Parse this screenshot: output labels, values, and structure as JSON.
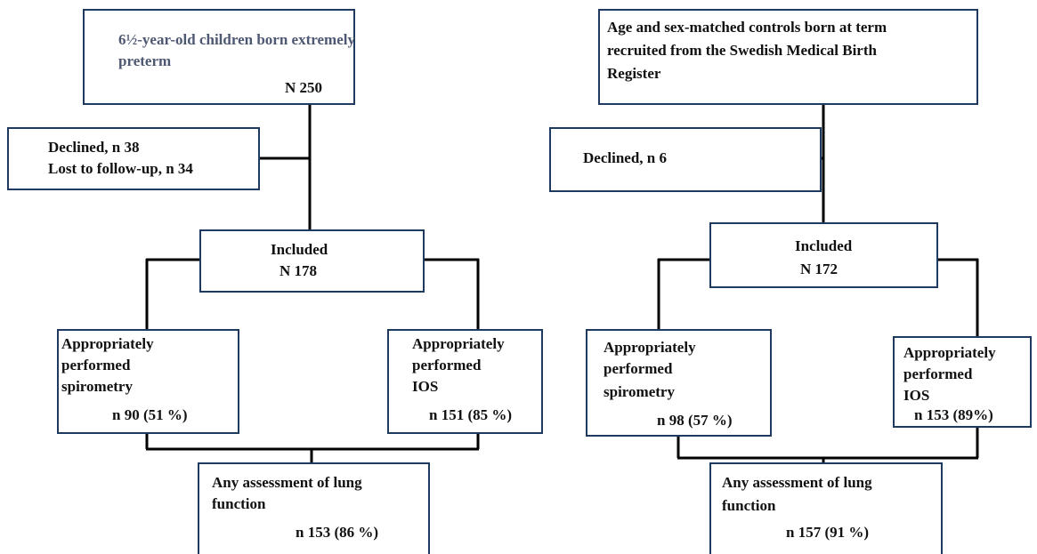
{
  "left": {
    "nodes": [
      {
        "lines": [
          "6½-year-old children born extremely",
          "preterm",
          "N 250"
        ]
      },
      {
        "lines": [
          "Declined, n 38",
          "Lost to follow-up, n 34"
        ]
      },
      {
        "lines": [
          "Included",
          "N 178"
        ]
      },
      {
        "lines": [
          "Appropriately",
          "performed",
          "spirometry",
          "n 90 (51 %)"
        ]
      },
      {
        "lines": [
          "Appropriately",
          "performed",
          "IOS",
          "n 151 (85 %)"
        ]
      },
      {
        "lines": [
          "Any assessment of lung",
          "function",
          "n 153 (86 %)"
        ]
      }
    ]
  },
  "right": {
    "nodes": [
      {
        "lines": [
          "Age and sex-matched controls born at term",
          "recruited from the Swedish Medical Birth",
          "Register"
        ]
      },
      {
        "lines": [
          "Declined, n 6"
        ]
      },
      {
        "lines": [
          "Included",
          "N 172"
        ]
      },
      {
        "lines": [
          "Appropriately",
          "performed",
          "spirometry",
          "n 98 (57 %)"
        ]
      },
      {
        "lines": [
          "Appropriately",
          "performed",
          "IOS",
          "n 153 (89%)"
        ]
      },
      {
        "lines": [
          "Any assessment of lung",
          "function",
          "n 157 (91 %)"
        ]
      }
    ]
  }
}
